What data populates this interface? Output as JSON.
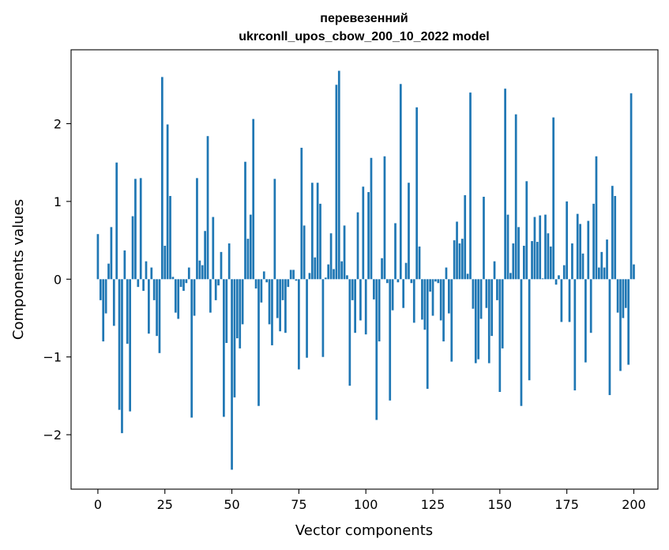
{
  "chart_data": {
    "type": "bar",
    "title_line1": "перевезенний",
    "title_line2": "ukrconll_upos_cbow_200_10_2022 model",
    "xlabel": "Vector components",
    "ylabel": "Components values",
    "xlim": [
      -10,
      209
    ],
    "ylim": [
      -2.7,
      2.95
    ],
    "x_ticks": [
      0,
      25,
      50,
      75,
      100,
      125,
      150,
      175,
      200
    ],
    "x_tick_labels": [
      "0",
      "25",
      "50",
      "75",
      "100",
      "125",
      "150",
      "175",
      "200"
    ],
    "y_ticks": [
      -2,
      -1,
      0,
      1,
      2
    ],
    "y_tick_labels": [
      "−2",
      "−1",
      "0",
      "1",
      "2"
    ],
    "bar_color": "#1f77b4",
    "grid": false,
    "values": [
      0.58,
      -0.27,
      -0.8,
      -0.44,
      0.2,
      0.67,
      -0.6,
      1.5,
      -1.68,
      -1.98,
      0.37,
      -0.83,
      -1.7,
      0.81,
      1.29,
      -0.1,
      1.3,
      -0.15,
      0.23,
      -0.7,
      0.15,
      -0.27,
      -0.73,
      -0.95,
      2.6,
      0.43,
      1.99,
      1.07,
      0.03,
      -0.43,
      -0.51,
      -0.1,
      -0.15,
      -0.05,
      0.15,
      -1.78,
      -0.47,
      1.3,
      0.24,
      0.18,
      0.62,
      1.84,
      -0.43,
      0.8,
      -0.27,
      -0.08,
      0.35,
      -1.77,
      -0.82,
      0.46,
      -2.45,
      -1.52,
      -0.76,
      -0.89,
      -0.58,
      1.51,
      0.52,
      0.83,
      2.06,
      -0.12,
      -1.63,
      -0.3,
      0.1,
      -0.04,
      -0.58,
      -0.85,
      1.29,
      -0.5,
      -0.67,
      -0.27,
      -0.69,
      -0.1,
      0.12,
      0.12,
      -0.02,
      -1.16,
      1.69,
      0.69,
      -1.01,
      0.08,
      1.24,
      0.28,
      1.24,
      0.97,
      -1.0,
      0.02,
      0.19,
      0.59,
      0.13,
      2.5,
      2.68,
      0.23,
      0.69,
      0.05,
      -1.37,
      -0.27,
      -0.69,
      0.86,
      -0.53,
      1.19,
      -0.71,
      1.12,
      1.56,
      -0.26,
      -1.81,
      -0.8,
      0.27,
      1.58,
      -0.05,
      -1.56,
      -0.4,
      0.72,
      -0.04,
      2.51,
      -0.37,
      0.21,
      1.24,
      -0.05,
      -0.56,
      2.21,
      0.42,
      -0.52,
      -0.65,
      -1.41,
      -0.16,
      -0.47,
      -0.03,
      -0.05,
      -0.53,
      -0.8,
      0.15,
      -0.44,
      -1.06,
      0.5,
      0.74,
      0.46,
      0.52,
      1.08,
      0.07,
      2.4,
      -0.38,
      -1.08,
      -1.03,
      -0.51,
      1.06,
      -0.37,
      -1.08,
      -0.73,
      0.23,
      -0.27,
      -1.45,
      -0.89,
      2.45,
      0.83,
      0.08,
      0.46,
      2.12,
      0.67,
      -1.63,
      0.43,
      1.26,
      -1.3,
      0.49,
      0.8,
      0.48,
      0.82,
      0.01,
      0.83,
      0.59,
      0.42,
      2.08,
      -0.07,
      0.05,
      -0.55,
      0.18,
      1.0,
      -0.55,
      0.46,
      -1.43,
      0.84,
      0.71,
      0.33,
      -1.07,
      0.75,
      -0.69,
      0.97,
      1.58,
      0.15,
      0.35,
      0.15,
      0.51,
      -1.49,
      1.2,
      1.07,
      -0.43,
      -1.18,
      -0.5,
      -0.37,
      -1.1,
      2.39,
      0.19
    ]
  }
}
